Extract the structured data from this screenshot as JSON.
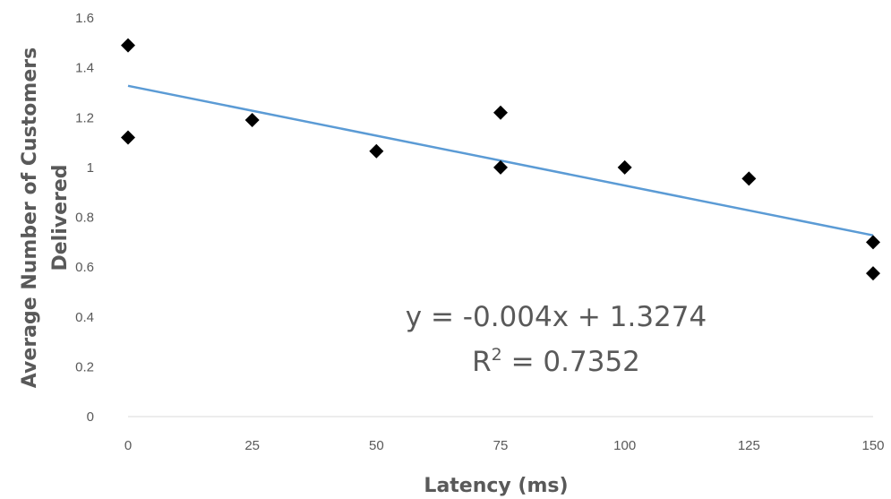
{
  "chart_data": {
    "type": "scatter",
    "xlabel": "Latency (ms)",
    "ylabel_lines": [
      "Average Number of Customers",
      "Delivered"
    ],
    "xlim": [
      0,
      150
    ],
    "ylim": [
      0,
      1.6
    ],
    "x_ticks": [
      "0",
      "25",
      "50",
      "75",
      "100",
      "125",
      "150"
    ],
    "y_ticks": [
      "0",
      "0.2",
      "0.4",
      "0.6",
      "0.8",
      "1",
      "1.2",
      "1.4",
      "1.6"
    ],
    "grid": false,
    "marker": "diamond",
    "marker_color": "#000000",
    "points": [
      {
        "x": 0,
        "y": 1.49
      },
      {
        "x": 0,
        "y": 1.12
      },
      {
        "x": 25,
        "y": 1.19
      },
      {
        "x": 50,
        "y": 1.065
      },
      {
        "x": 75,
        "y": 1.22
      },
      {
        "x": 75,
        "y": 1.0
      },
      {
        "x": 100,
        "y": 1.0
      },
      {
        "x": 125,
        "y": 0.955
      },
      {
        "x": 150,
        "y": 0.7
      },
      {
        "x": 150,
        "y": 0.575
      }
    ],
    "trendline": {
      "type": "linear",
      "slope": -0.004,
      "intercept": 1.3274,
      "color": "#5b9bd5",
      "x_range": [
        0,
        150
      ]
    },
    "annotations": {
      "equation": "y = -0.004x + 1.3274",
      "r_squared_prefix": "R",
      "r_squared_sup": "2",
      "r_squared_suffix": " = 0.7352"
    },
    "axis_color": "#d9d9d9"
  }
}
